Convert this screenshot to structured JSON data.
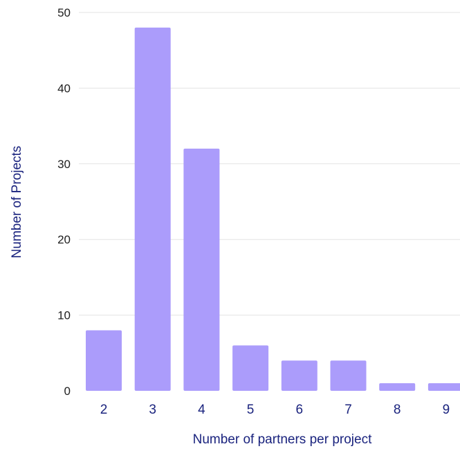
{
  "chart_data": {
    "type": "bar",
    "title": "",
    "xlabel": "Number of partners per project",
    "ylabel": "Number of  Projects",
    "categories": [
      "2",
      "3",
      "4",
      "5",
      "6",
      "7",
      "8",
      "9"
    ],
    "values": [
      8,
      48,
      32,
      6,
      4,
      4,
      1,
      1
    ],
    "ylim": [
      0,
      50
    ],
    "yticks": [
      0,
      10,
      20,
      30,
      40,
      50
    ],
    "grid": true,
    "legend": "none",
    "colors": {
      "bar": "#ab9cfb",
      "axis_text": "#1a237e",
      "tick_text": "#1f1f1f",
      "grid": "#e3e3e3"
    }
  }
}
